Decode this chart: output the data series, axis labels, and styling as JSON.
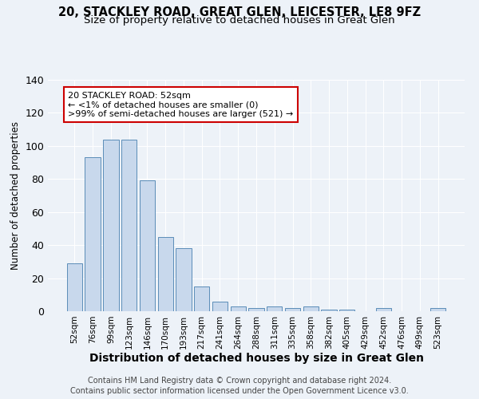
{
  "title": "20, STACKLEY ROAD, GREAT GLEN, LEICESTER, LE8 9FZ",
  "subtitle": "Size of property relative to detached houses in Great Glen",
  "xlabel": "Distribution of detached houses by size in Great Glen",
  "ylabel": "Number of detached properties",
  "bar_labels": [
    "52sqm",
    "76sqm",
    "99sqm",
    "123sqm",
    "146sqm",
    "170sqm",
    "193sqm",
    "217sqm",
    "241sqm",
    "264sqm",
    "288sqm",
    "311sqm",
    "335sqm",
    "358sqm",
    "382sqm",
    "405sqm",
    "429sqm",
    "452sqm",
    "476sqm",
    "499sqm",
    "523sqm"
  ],
  "bar_values": [
    29,
    93,
    104,
    104,
    79,
    45,
    38,
    15,
    6,
    3,
    2,
    3,
    2,
    3,
    1,
    1,
    0,
    2,
    0,
    0,
    2
  ],
  "bar_color": "#c8d8ec",
  "bar_edge_color": "#5b8db8",
  "annotation_line1": "20 STACKLEY ROAD: 52sqm",
  "annotation_line2": "← <1% of detached houses are smaller (0)",
  "annotation_line3": ">99% of semi-detached houses are larger (521) →",
  "annotation_box_color": "#ffffff",
  "annotation_box_edge": "#cc0000",
  "ylim": [
    0,
    140
  ],
  "yticks": [
    0,
    20,
    40,
    60,
    80,
    100,
    120,
    140
  ],
  "background_color": "#edf2f8",
  "grid_color": "#ffffff",
  "footer_line1": "Contains HM Land Registry data © Crown copyright and database right 2024.",
  "footer_line2": "Contains public sector information licensed under the Open Government Licence v3.0.",
  "title_fontsize": 10.5,
  "subtitle_fontsize": 9.5,
  "xlabel_fontsize": 10,
  "ylabel_fontsize": 8.5,
  "annotation_fontsize": 8,
  "footer_fontsize": 7,
  "tick_fontsize": 7.5
}
